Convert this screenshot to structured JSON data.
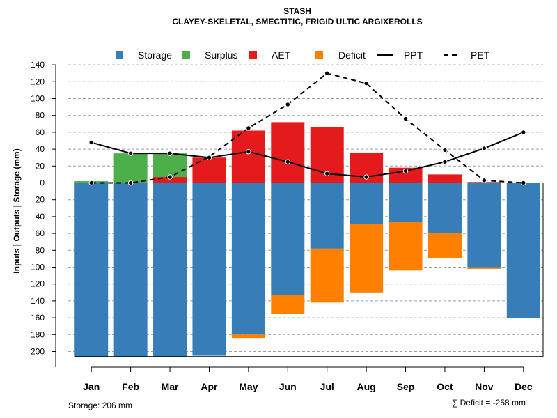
{
  "chart_data": {
    "type": "bar",
    "title": "STASH",
    "subtitle": "CLAYEY-SKELETAL, SMECTITIC, FRIGID ULTIC ARGIXEROLLS",
    "ylabel": "Inputs | Outputs | Storage    (mm)",
    "ylim": [
      -206,
      140
    ],
    "categories": [
      "Jan",
      "Feb",
      "Mar",
      "Apr",
      "May",
      "Jun",
      "Jul",
      "Aug",
      "Sep",
      "Oct",
      "Nov",
      "Dec"
    ],
    "y_ticks": [
      140,
      120,
      100,
      80,
      60,
      40,
      20,
      0,
      -20,
      -40,
      -60,
      -80,
      -100,
      -120,
      -140,
      -160,
      -180,
      -200
    ],
    "y_tick_labels": [
      "140",
      "120",
      "100",
      "80",
      "60",
      "40",
      "20",
      "0",
      "20",
      "40",
      "60",
      "80",
      "100",
      "120",
      "140",
      "160",
      "180",
      "200"
    ],
    "series": [
      {
        "name": "Storage",
        "color": "#377EB8",
        "values": [
          -206,
          -206,
          -206,
          -205,
          -180,
          -133,
          -78,
          -49,
          -46,
          -60,
          -100,
          -160
        ]
      },
      {
        "name": "Surplus",
        "color": "#4DAF4A",
        "values": [
          2,
          35,
          28,
          0,
          0,
          0,
          0,
          0,
          0,
          0,
          0,
          0
        ]
      },
      {
        "name": "AET",
        "color": "#E41A1C",
        "values": [
          0,
          0,
          7,
          30,
          62,
          72,
          66,
          36,
          18,
          10,
          1,
          0
        ]
      },
      {
        "name": "Deficit",
        "color": "#FF7F00",
        "values": [
          0,
          0,
          0,
          0,
          -4,
          -22,
          -64,
          -81,
          -58,
          -29,
          -2,
          0
        ]
      },
      {
        "name": "PPT",
        "style": "solid",
        "values": [
          48,
          35,
          35,
          30,
          37,
          25,
          11,
          7,
          14,
          25,
          41,
          60
        ]
      },
      {
        "name": "PET",
        "style": "dashed",
        "values": [
          0,
          0,
          7,
          31,
          65,
          93,
          130,
          118,
          76,
          39,
          3,
          0
        ]
      }
    ],
    "legend": [
      "Storage",
      "Surplus",
      "AET",
      "Deficit",
      "PPT",
      "PET"
    ],
    "legend_position": "top",
    "grid": true,
    "annotations": {
      "storage": "Storage: 206 mm",
      "deficit": "∑ Deficit = -258 mm"
    }
  }
}
